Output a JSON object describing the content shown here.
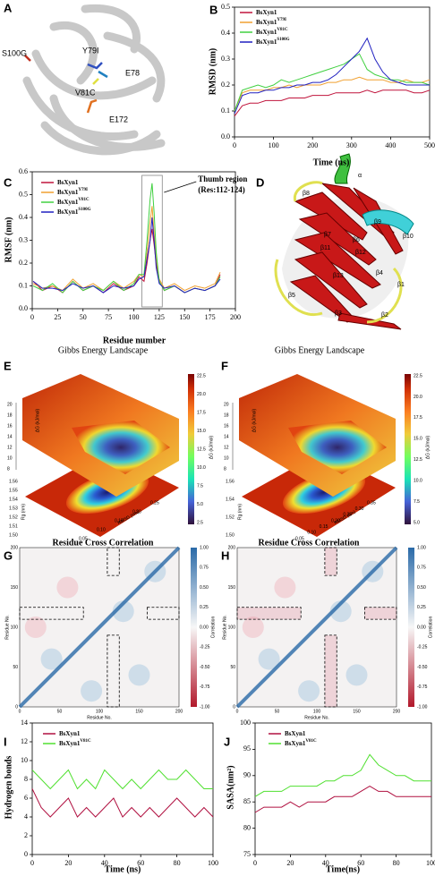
{
  "panel_labels": [
    "A",
    "B",
    "C",
    "D",
    "E",
    "F",
    "G",
    "H",
    "I",
    "J"
  ],
  "structure_a": {
    "labels": [
      "S100G",
      "Y79I",
      "E78",
      "V81C",
      "E172"
    ]
  },
  "structure_d": {
    "labels": [
      "β8",
      "α",
      "β9",
      "β10",
      "β7",
      "β11",
      "β6",
      "β12",
      "β4",
      "β1",
      "β13",
      "β5",
      "β3",
      "β2"
    ]
  },
  "energy_landscapes": [
    {
      "title": "Gibbs Energy Landscape",
      "z_label": "ΔG (kJ/mol)",
      "colorbar_label": "ΔG (kJ/mol)",
      "x_label": "RMSD (nm)",
      "y_label": "Rg (nm)",
      "colorbar_ticks": [
        "22.5",
        "20.0",
        "17.5",
        "15.0",
        "12.5",
        "10.0",
        "7.5",
        "5.0",
        "2.5"
      ],
      "z_ticks": [
        "20",
        "18",
        "16",
        "14",
        "12",
        "10",
        "8"
      ],
      "y_ticks": [
        "1.56",
        "1.55",
        "1.54",
        "1.53",
        "1.52",
        "1.51",
        "1.50"
      ],
      "x_ticks": [
        "0.05",
        "0.10",
        "0.15",
        "0.20",
        "0.25"
      ]
    },
    {
      "title": "Gibbs Energy Landscape",
      "z_label": "ΔG (kJ/mol)",
      "colorbar_label": "ΔG (kJ/mol)",
      "x_label": "RMSD (nm)",
      "y_label": "Rg (nm)",
      "colorbar_ticks": [
        "22.5",
        "20.0",
        "17.5",
        "15.0",
        "12.5",
        "10.0",
        "7.5",
        "5.0"
      ],
      "z_ticks": [
        "20",
        "18",
        "16",
        "14",
        "12",
        "10",
        "8"
      ],
      "y_ticks": [
        "1.56",
        "1.54",
        "1.52",
        "1.50"
      ],
      "x_ticks": [
        "0.05",
        "0.10",
        "0.15",
        "0.20",
        "0.25",
        "0.30",
        "0.35"
      ]
    }
  ],
  "correlation_maps": [
    {
      "title": "Residue Cross Correlation",
      "x_label": "Residue No.",
      "y_label": "Residue No.",
      "colorbar_label": "Correlation",
      "ticks": [
        "0",
        "50",
        "100",
        "150",
        "200"
      ],
      "colorbar_ticks": [
        "1.00",
        "0.75",
        "0.50",
        "0.25",
        "0.00",
        "-0.25",
        "-0.50",
        "-0.75",
        "-1.00"
      ]
    },
    {
      "title": "Residue Cross Correlation",
      "x_label": "Residue No.",
      "y_label": "Residue No.",
      "colorbar_label": "Correlation",
      "ticks": [
        "0",
        "50",
        "100",
        "150",
        "200"
      ],
      "colorbar_ticks": [
        "1.00",
        "0.75",
        "0.50",
        "0.25",
        "0.00",
        "-0.25",
        "-0.50",
        "-0.75",
        "-1.00"
      ]
    }
  ],
  "chart_data": [
    {
      "type": "line",
      "x_label": "Time (ns)",
      "y_label": "RMSD (nm)",
      "xlim": [
        0,
        500
      ],
      "ylim": [
        0,
        0.5
      ],
      "xticks": [
        0,
        100,
        200,
        300,
        400,
        500
      ],
      "yticks": [
        {
          "value": 0,
          "label": "0.0"
        },
        0.1,
        0.2,
        0.3,
        0.4,
        0.5
      ],
      "x": [
        0,
        20,
        40,
        60,
        80,
        100,
        120,
        140,
        160,
        180,
        200,
        220,
        240,
        260,
        280,
        300,
        320,
        340,
        360,
        380,
        400,
        420,
        440,
        460,
        480,
        500
      ],
      "series": [
        {
          "name": "BsXyn1",
          "sup": "",
          "color": "#c0143c",
          "values": [
            0.08,
            0.12,
            0.13,
            0.13,
            0.14,
            0.14,
            0.14,
            0.15,
            0.15,
            0.15,
            0.16,
            0.16,
            0.16,
            0.17,
            0.17,
            0.17,
            0.17,
            0.18,
            0.17,
            0.18,
            0.18,
            0.18,
            0.18,
            0.17,
            0.17,
            0.18
          ]
        },
        {
          "name": "BsXyn1",
          "sup": "Y79I",
          "color": "#f0a030",
          "values": [
            0.1,
            0.17,
            0.18,
            0.18,
            0.18,
            0.19,
            0.19,
            0.2,
            0.19,
            0.2,
            0.2,
            0.2,
            0.21,
            0.21,
            0.22,
            0.22,
            0.23,
            0.22,
            0.22,
            0.22,
            0.21,
            0.21,
            0.22,
            0.21,
            0.21,
            0.22
          ]
        },
        {
          "name": "BsXyn1",
          "sup": "V81C",
          "color": "#40d040",
          "values": [
            0.1,
            0.18,
            0.19,
            0.2,
            0.19,
            0.2,
            0.22,
            0.21,
            0.22,
            0.23,
            0.24,
            0.25,
            0.26,
            0.27,
            0.28,
            0.3,
            0.32,
            0.26,
            0.24,
            0.23,
            0.22,
            0.22,
            0.21,
            0.21,
            0.21,
            0.2
          ]
        },
        {
          "name": "BsXyn1",
          "sup": "S100G",
          "color": "#2020c0",
          "values": [
            0.09,
            0.16,
            0.17,
            0.17,
            0.18,
            0.18,
            0.19,
            0.19,
            0.2,
            0.2,
            0.21,
            0.21,
            0.22,
            0.24,
            0.27,
            0.3,
            0.33,
            0.38,
            0.3,
            0.25,
            0.22,
            0.21,
            0.2,
            0.2,
            0.2,
            0.2
          ]
        }
      ]
    },
    {
      "type": "line",
      "x_label": "Residue number",
      "y_label": "RMSF (nm)",
      "xlim": [
        0,
        200
      ],
      "ylim": [
        0,
        0.6
      ],
      "xticks": [
        0,
        25,
        50,
        75,
        100,
        125,
        150,
        175,
        200
      ],
      "yticks": [
        {
          "value": 0,
          "label": "0.0"
        },
        0.1,
        0.2,
        0.3,
        0.4,
        0.5,
        0.6
      ],
      "annotations": [
        "Thumb region",
        "(Res:112-124)"
      ],
      "highlight_x": [
        108,
        128
      ],
      "x": [
        1,
        10,
        20,
        30,
        40,
        50,
        60,
        70,
        80,
        90,
        100,
        105,
        110,
        113,
        116,
        118,
        120,
        122,
        125,
        130,
        140,
        150,
        160,
        170,
        180,
        185
      ],
      "series": [
        {
          "name": "BsXyn1",
          "sup": "",
          "color": "#c0143c",
          "values": [
            0.12,
            0.08,
            0.1,
            0.07,
            0.12,
            0.08,
            0.1,
            0.07,
            0.11,
            0.08,
            0.1,
            0.14,
            0.12,
            0.2,
            0.3,
            0.35,
            0.28,
            0.2,
            0.12,
            0.08,
            0.1,
            0.07,
            0.09,
            0.08,
            0.1,
            0.15
          ]
        },
        {
          "name": "BsXyn1",
          "sup": "Y79I",
          "color": "#f0a030",
          "values": [
            0.11,
            0.09,
            0.1,
            0.08,
            0.13,
            0.09,
            0.11,
            0.08,
            0.12,
            0.09,
            0.12,
            0.15,
            0.14,
            0.25,
            0.38,
            0.45,
            0.33,
            0.22,
            0.13,
            0.09,
            0.11,
            0.08,
            0.1,
            0.09,
            0.11,
            0.16
          ]
        },
        {
          "name": "BsXyn1",
          "sup": "V81C",
          "color": "#40d040",
          "values": [
            0.1,
            0.08,
            0.11,
            0.07,
            0.12,
            0.08,
            0.1,
            0.08,
            0.12,
            0.08,
            0.11,
            0.15,
            0.15,
            0.3,
            0.48,
            0.55,
            0.42,
            0.25,
            0.12,
            0.08,
            0.1,
            0.07,
            0.09,
            0.08,
            0.1,
            0.14
          ]
        },
        {
          "name": "BsXyn1",
          "sup": "S100G",
          "color": "#2020c0",
          "values": [
            0.12,
            0.09,
            0.09,
            0.08,
            0.11,
            0.09,
            0.1,
            0.07,
            0.1,
            0.09,
            0.1,
            0.13,
            0.14,
            0.22,
            0.3,
            0.4,
            0.3,
            0.18,
            0.11,
            0.09,
            0.1,
            0.07,
            0.09,
            0.08,
            0.1,
            0.13
          ]
        }
      ]
    },
    {
      "type": "line",
      "x_label": "Time (ns)",
      "y_label": "Hydrogen bonds",
      "xlim": [
        0,
        100
      ],
      "ylim": [
        0,
        14
      ],
      "xticks": [
        0,
        20,
        40,
        60,
        80,
        100
      ],
      "yticks": [
        0,
        2,
        4,
        6,
        8,
        10,
        12,
        14
      ],
      "x": [
        0,
        5,
        10,
        15,
        20,
        25,
        30,
        35,
        40,
        45,
        50,
        55,
        60,
        65,
        70,
        75,
        80,
        85,
        90,
        95,
        100
      ],
      "series": [
        {
          "name": "BsXyn1",
          "sup": "",
          "color": "#b01040",
          "values": [
            7,
            5,
            4,
            5,
            6,
            4,
            5,
            4,
            5,
            6,
            4,
            5,
            4,
            5,
            4,
            5,
            6,
            5,
            4,
            5,
            4
          ]
        },
        {
          "name": "BsXyn1",
          "sup": "V81C",
          "color": "#50e030",
          "values": [
            9,
            8,
            7,
            8,
            9,
            7,
            8,
            7,
            9,
            8,
            7,
            8,
            7,
            8,
            9,
            8,
            8,
            9,
            8,
            7,
            7
          ]
        }
      ]
    },
    {
      "type": "line",
      "x_label": "Time(ns)",
      "y_label": "SASA(nm²)",
      "xlim": [
        0,
        100
      ],
      "ylim": [
        75,
        100
      ],
      "xticks": [
        0,
        20,
        40,
        60,
        80,
        100
      ],
      "yticks": [
        75,
        80,
        85,
        90,
        95,
        100
      ],
      "x": [
        0,
        5,
        10,
        15,
        20,
        25,
        30,
        35,
        40,
        45,
        50,
        55,
        60,
        65,
        70,
        75,
        80,
        85,
        90,
        95,
        100
      ],
      "series": [
        {
          "name": "BsXyn1",
          "sup": "",
          "color": "#b01040",
          "values": [
            83,
            84,
            84,
            84,
            85,
            84,
            85,
            85,
            85,
            86,
            86,
            86,
            87,
            88,
            87,
            87,
            86,
            86,
            86,
            86,
            86
          ]
        },
        {
          "name": "BsXyn1",
          "sup": "V81C",
          "color": "#50e030",
          "values": [
            86,
            87,
            87,
            87,
            88,
            88,
            88,
            88,
            89,
            89,
            90,
            90,
            91,
            94,
            92,
            91,
            90,
            90,
            89,
            89,
            89
          ]
        }
      ]
    }
  ]
}
